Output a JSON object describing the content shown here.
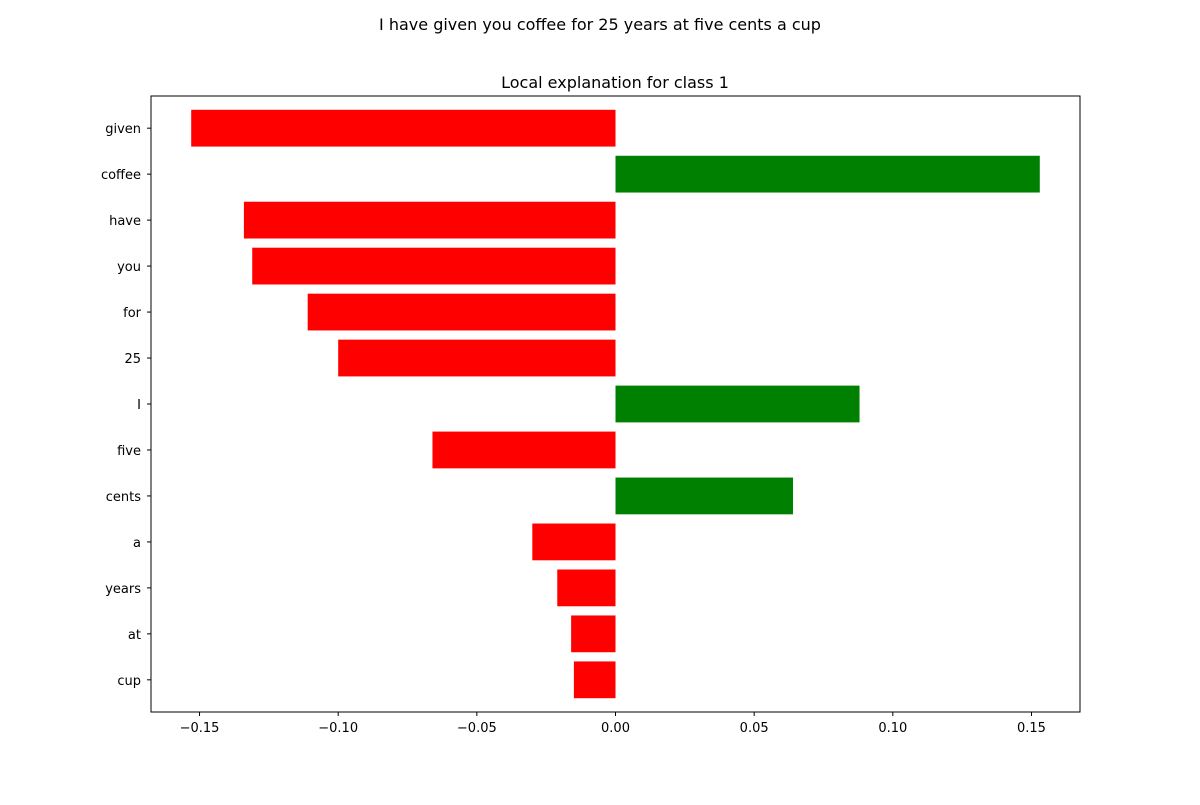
{
  "chart_data": {
    "type": "bar",
    "orientation": "horizontal",
    "suptitle": "I have given you coffee for 25 years at five cents a cup",
    "title": "Local explanation for class 1",
    "xlabel": "",
    "ylabel": "",
    "xlim": [
      -0.1675,
      0.1675
    ],
    "xticks": [
      -0.15,
      -0.1,
      -0.05,
      0.0,
      0.05,
      0.1,
      0.15
    ],
    "xtick_labels": [
      "−0.15",
      "−0.10",
      "−0.05",
      "0.00",
      "0.05",
      "0.10",
      "0.15"
    ],
    "categories": [
      "given",
      "coffee",
      "have",
      "you",
      "for",
      "25",
      "I",
      "five",
      "cents",
      "a",
      "years",
      "at",
      "cup"
    ],
    "values": [
      -0.153,
      0.153,
      -0.134,
      -0.131,
      -0.111,
      -0.1,
      0.088,
      -0.066,
      0.064,
      -0.03,
      -0.021,
      -0.016,
      -0.015
    ],
    "colors": {
      "positive": "#008000",
      "negative": "#ff0000"
    },
    "grid": false,
    "legend": "none"
  }
}
